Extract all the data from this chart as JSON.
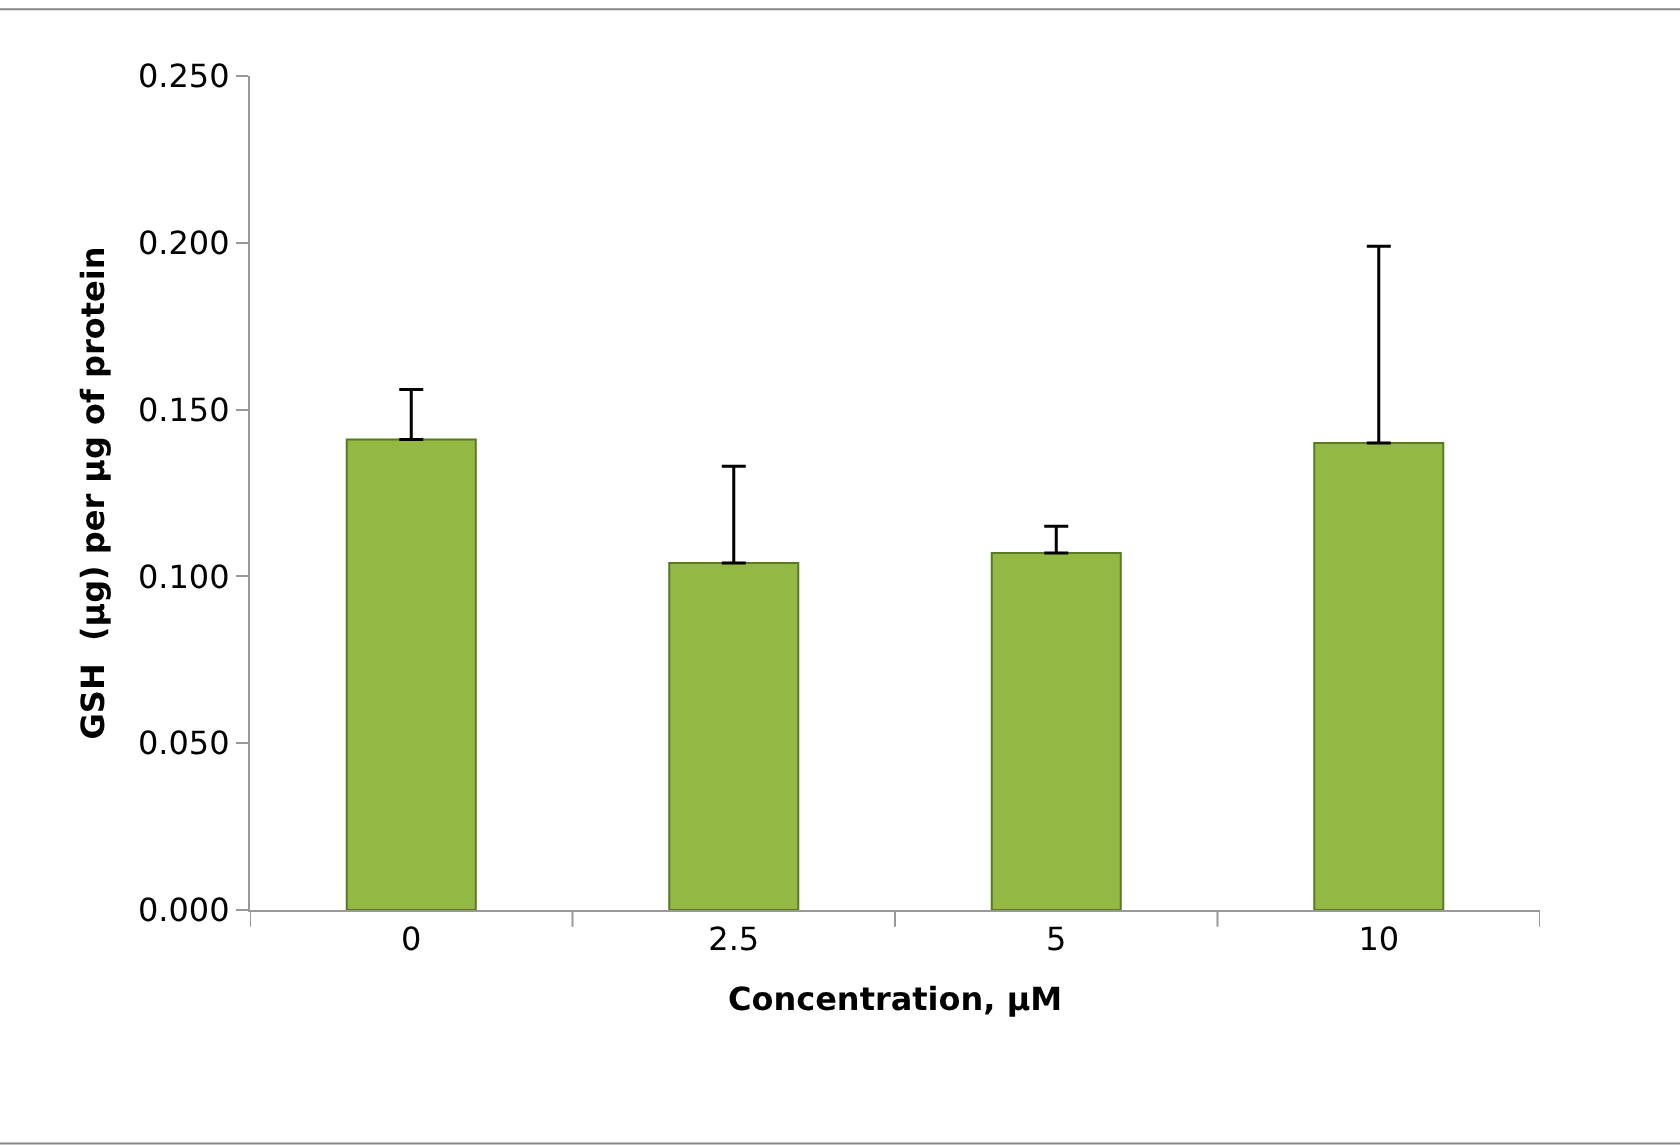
{
  "chart_data": {
    "type": "bar",
    "xlabel": "Concentration, µM",
    "ylabel": "GSH  (µg) per µg of protein",
    "categories": [
      "0",
      "2.5",
      "5",
      "10"
    ],
    "values": [
      0.141,
      0.104,
      0.107,
      0.14
    ],
    "errors": [
      [
        0.141,
        0.156
      ],
      [
        0.104,
        0.133
      ],
      [
        0.107,
        0.115
      ],
      [
        0.14,
        0.199
      ]
    ],
    "color": "#93b944",
    "ylim": [
      0,
      0.25
    ],
    "yticks": [
      {
        "value": 0,
        "label": "0.000"
      },
      {
        "value": 0.05,
        "label": "0.050"
      },
      {
        "value": 0.1,
        "label": "0.100"
      },
      {
        "value": 0.15,
        "label": "0.150"
      },
      {
        "value": 0.2,
        "label": "0.200"
      },
      {
        "value": 0.25,
        "label": "0.250"
      }
    ]
  }
}
